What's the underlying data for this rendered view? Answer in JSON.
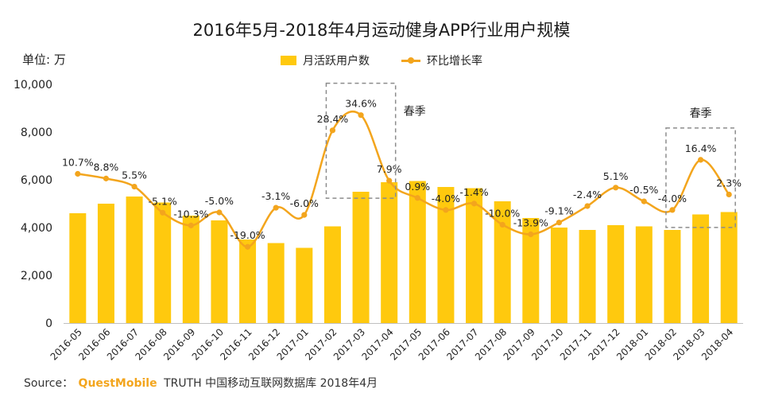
{
  "title": "2016年5月-2018年4月运动健身APP行业用户规模",
  "unit_label": "单位: 万",
  "legend": {
    "bar_label": "月活跃用户数",
    "line_label": "环比增长率"
  },
  "annotations": {
    "spring_1": "春季",
    "spring_2": "春季"
  },
  "source": {
    "prefix": "Source：",
    "brand": "QuestMobile",
    "text": "TRUTH 中国移动互联网数据库 2018年4月"
  },
  "colors": {
    "bar": "#ffc90e",
    "line": "#f3a51d",
    "box": "#8c8c8c",
    "text": "#222222"
  },
  "chart_data": {
    "type": "bar",
    "title": "2016年5月-2018年4月运动健身APP行业用户规模",
    "categories": [
      "2016-05",
      "2016-06",
      "2016-07",
      "2016-08",
      "2016-09",
      "2016-10",
      "2016-11",
      "2016-12",
      "2017-01",
      "2017-02",
      "2017-03",
      "2017-04",
      "2017-05",
      "2017-06",
      "2017-07",
      "2017-08",
      "2017-09",
      "2017-10",
      "2017-11",
      "2017-12",
      "2018-01",
      "2018-02",
      "2018-03",
      "2018-04"
    ],
    "y_ticks": [
      "0",
      "2,000",
      "4,000",
      "6,000",
      "8,000",
      "10,000"
    ],
    "ylim": [
      0,
      10000
    ],
    "grid": false,
    "legend_position": "top",
    "series": [
      {
        "name": "月活跃用户数",
        "type": "bar",
        "values": [
          4600,
          5000,
          5300,
          5050,
          4500,
          4300,
          3500,
          3350,
          3150,
          4050,
          5500,
          5900,
          5950,
          5700,
          5650,
          5100,
          4400,
          4000,
          3900,
          4100,
          4050,
          3900,
          4550,
          4650
        ]
      },
      {
        "name": "环比增长率",
        "type": "line",
        "labels": [
          "10.7%",
          "8.8%",
          "5.5%",
          "-5.1%",
          "-10.3%",
          "-5.0%",
          "-19.0%",
          "-3.1%",
          "-6.0%",
          "28.4%",
          "34.6%",
          "7.9%",
          "0.9%",
          "-4.0%",
          "-1.4%",
          "-10.0%",
          "-13.9%",
          "-9.1%",
          "-2.4%",
          "5.1%",
          "-0.5%",
          "-4.0%",
          "16.4%",
          "2.3%"
        ],
        "values": [
          10.7,
          8.8,
          5.5,
          -5.1,
          -10.3,
          -5.0,
          -19.0,
          -3.1,
          -6.0,
          28.4,
          34.6,
          7.9,
          0.9,
          -4.0,
          -1.4,
          -10.0,
          -13.9,
          -9.1,
          -2.4,
          5.1,
          -0.5,
          -4.0,
          16.4,
          2.3
        ]
      }
    ]
  }
}
